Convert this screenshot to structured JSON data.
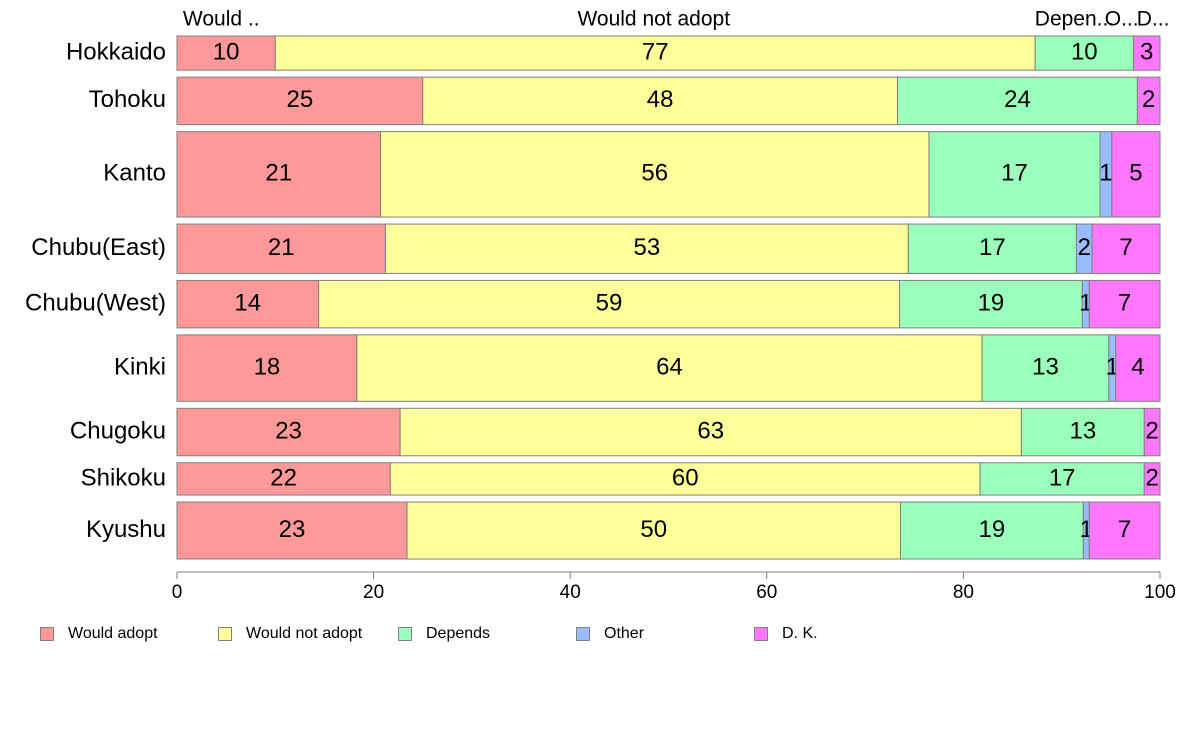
{
  "chart_data": {
    "type": "bar",
    "orientation": "horizontal",
    "stacked": true,
    "variable_width": true,
    "categories": [
      "Hokkaido",
      "Tohoku",
      "Kanto",
      "Chubu(East)",
      "Chubu(West)",
      "Kinki",
      "Chugoku",
      "Shikoku",
      "Kyushu"
    ],
    "category_weights": [
      0.9,
      1.25,
      2.25,
      1.3,
      1.25,
      1.75,
      1.25,
      0.85,
      1.5
    ],
    "series": [
      {
        "name": "Would adopt",
        "color": "#FF9999",
        "values": [
          10,
          25,
          20.7,
          21.2,
          14.4,
          18.3,
          22.7,
          21.7,
          23.4
        ],
        "labels": [
          "10",
          "25",
          "21",
          "21",
          "14",
          "18",
          "23",
          "22",
          "23"
        ]
      },
      {
        "name": "Would not adopt",
        "color": "#FFFF99",
        "values": [
          77.3,
          48.3,
          55.8,
          53.2,
          59.1,
          63.6,
          63.2,
          60.0,
          50.2
        ],
        "labels": [
          "77",
          "48",
          "56",
          "53",
          "59",
          "64",
          "63",
          "60",
          "50"
        ]
      },
      {
        "name": "Depends",
        "color": "#99FFBB",
        "values": [
          10,
          24.4,
          17.4,
          17.1,
          18.6,
          12.9,
          12.5,
          16.7,
          18.6
        ],
        "labels": [
          "10",
          "24",
          "17",
          "17",
          "19",
          "13",
          "13",
          "17",
          "19"
        ]
      },
      {
        "name": "Other",
        "color": "#99BBFF",
        "values": [
          0,
          0,
          1.2,
          1.6,
          0.7,
          0.7,
          0,
          0,
          0.6
        ],
        "labels": [
          "",
          "",
          "1",
          "2",
          "1",
          "1",
          "",
          "",
          "1"
        ]
      },
      {
        "name": "D. K.",
        "color": "#FF77FF",
        "values": [
          2.7,
          2.3,
          4.9,
          6.9,
          7.2,
          4.5,
          1.6,
          1.6,
          7.2
        ],
        "labels": [
          "3",
          "2",
          "5",
          "7",
          "7",
          "4",
          "2",
          "2",
          "7"
        ]
      }
    ],
    "top_labels": [
      "Would ..",
      "Would not adopt",
      "Depen...",
      "O...",
      "D..."
    ],
    "xlim": [
      0,
      100
    ],
    "xticks": [
      0,
      20,
      40,
      60,
      80,
      100
    ],
    "title": "",
    "xlabel": "",
    "ylabel": "",
    "grid": false,
    "legend_position": "bottom-left"
  }
}
